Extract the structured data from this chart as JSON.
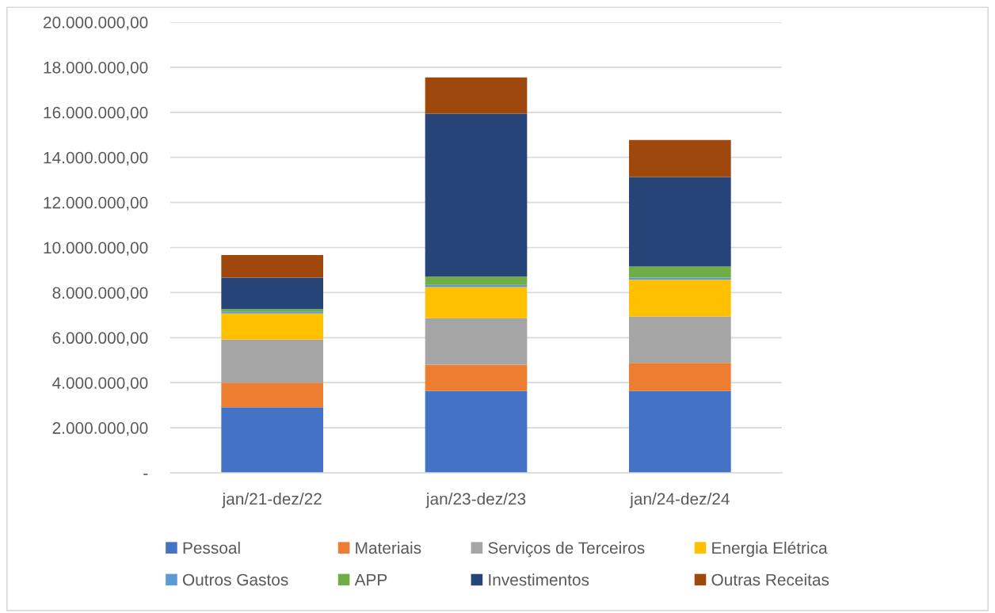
{
  "chart_data": {
    "type": "bar",
    "stacked": true,
    "categories": [
      "jan/21-dez/22",
      "jan/23-dez/23",
      "jan/24-dez/24"
    ],
    "series": [
      {
        "name": "Pessoal",
        "color": "#4472c4",
        "values": [
          2910000,
          3640000,
          3640000
        ]
      },
      {
        "name": "Materiais",
        "color": "#ed7d31",
        "values": [
          1090000,
          1160000,
          1240000
        ]
      },
      {
        "name": "Serviços de Terceiros",
        "color": "#a5a5a5",
        "values": [
          1910000,
          2060000,
          2060000
        ]
      },
      {
        "name": "Energia Elétrica",
        "color": "#ffc000",
        "values": [
          1160000,
          1380000,
          1630000
        ]
      },
      {
        "name": "Outros Gastos",
        "color": "#5b9bd5",
        "values": [
          90000,
          100000,
          90000
        ]
      },
      {
        "name": "APP",
        "color": "#70ad47",
        "values": [
          110000,
          370000,
          500000
        ]
      },
      {
        "name": "Investimentos",
        "color": "#264478",
        "values": [
          1390000,
          7230000,
          3970000
        ]
      },
      {
        "name": "Outras Receitas",
        "color": "#9e480e",
        "values": [
          1010000,
          1610000,
          1640000
        ]
      }
    ],
    "ylim": [
      0,
      20000000
    ],
    "yticks": [
      {
        "value": 0,
        "label": "-"
      },
      {
        "value": 2000000,
        "label": "2.000.000,00"
      },
      {
        "value": 4000000,
        "label": "4.000.000,00"
      },
      {
        "value": 6000000,
        "label": "6.000.000,00"
      },
      {
        "value": 8000000,
        "label": "8.000.000,00"
      },
      {
        "value": 10000000,
        "label": "10.000.000,00"
      },
      {
        "value": 12000000,
        "label": "12.000.000,00"
      },
      {
        "value": 14000000,
        "label": "14.000.000,00"
      },
      {
        "value": 16000000,
        "label": "16.000.000,00"
      },
      {
        "value": 18000000,
        "label": "18.000.000,00"
      },
      {
        "value": 20000000,
        "label": "20.000.000,00"
      }
    ],
    "grid": "y",
    "legend": "bottom"
  }
}
